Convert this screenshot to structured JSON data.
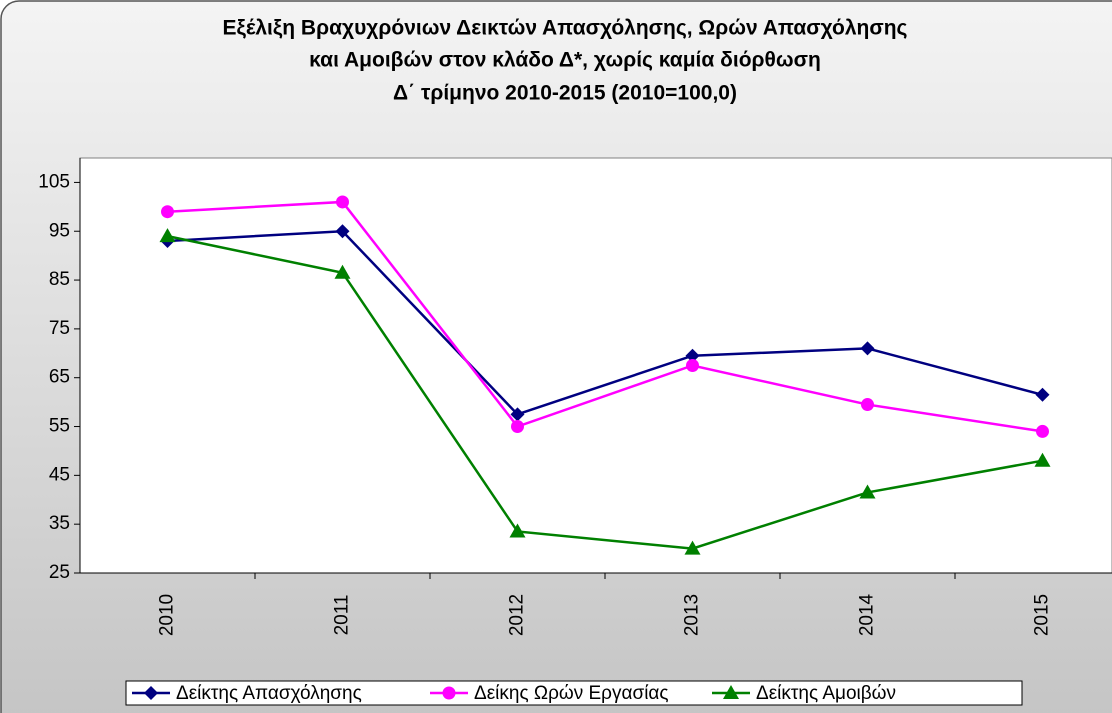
{
  "chart_data": {
    "type": "line",
    "title": [
      "Εξέλιξη Βραχυχρόνιων Δεικτών Απασχόλησης, Ωρών Απασχόλησης",
      "και Αμοιβών στον κλάδο Δ*, χωρίς καμία διόρθωση",
      "Δ΄ τρίμηνο 2010-2015 (2010=100,0)"
    ],
    "categories": [
      "2010",
      "2011",
      "2012",
      "2013",
      "2014",
      "2015"
    ],
    "series": [
      {
        "name": "Δείκτης Απασχόλησης",
        "color": "#000080",
        "marker": "diamond",
        "values": [
          93,
          95,
          57.5,
          69.5,
          71,
          61.5
        ]
      },
      {
        "name": "Δείκης Ωρών Εργασίας",
        "color": "#ff00ff",
        "marker": "circle",
        "values": [
          99,
          101,
          55,
          67.5,
          59.5,
          54
        ]
      },
      {
        "name": "Δείκτης Αμοιβών",
        "color": "#008000",
        "marker": "triangle",
        "values": [
          94,
          86.5,
          33.5,
          30,
          41.5,
          48
        ]
      }
    ],
    "ylim": [
      25,
      110
    ],
    "yticks": [
      25,
      35,
      45,
      55,
      65,
      75,
      85,
      95,
      105
    ],
    "legend": "bottom"
  }
}
